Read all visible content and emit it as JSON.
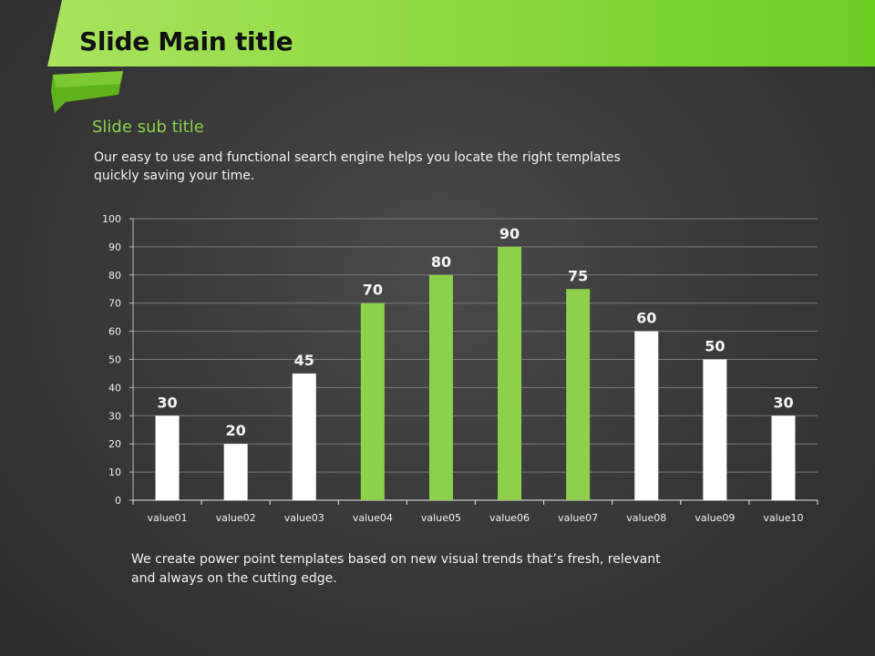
{
  "slide": {
    "title": "Slide Main title",
    "subtitle": "Slide sub title",
    "intro_text": "Our easy to use and functional search engine helps you locate the right templates quickly saving your time.",
    "footer_text": "We create power point templates based on new visual trends that’s fresh, relevant and always on the cutting edge."
  },
  "colors": {
    "accent": "#8dd14a",
    "banner_light": "#a6e05a",
    "banner_dark": "#6fcf22",
    "bar_white": "#ffffff",
    "bar_green": "#8dd14a",
    "background": "#3a3a3a"
  },
  "chart_data": {
    "type": "bar",
    "categories": [
      "value01",
      "value02",
      "value03",
      "value04",
      "value05",
      "value06",
      "value07",
      "value08",
      "value09",
      "value10"
    ],
    "values": [
      30,
      20,
      45,
      70,
      80,
      90,
      75,
      60,
      50,
      30
    ],
    "bar_colors": [
      "white",
      "white",
      "white",
      "green",
      "green",
      "green",
      "green",
      "white",
      "white",
      "white"
    ],
    "data_labels": [
      "30",
      "20",
      "45",
      "70",
      "80",
      "90",
      "75",
      "60",
      "50",
      "30"
    ],
    "ylim": [
      0,
      100
    ],
    "yticks": [
      0,
      10,
      20,
      30,
      40,
      50,
      60,
      70,
      80,
      90,
      100
    ],
    "grid": true,
    "legend": "none"
  }
}
